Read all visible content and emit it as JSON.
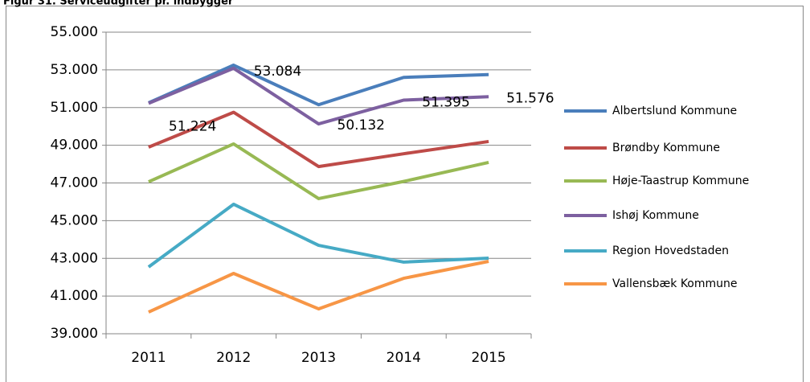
{
  "chart_data": {
    "type": "line",
    "title": "Figur 31. Serviceudgifter pr. indbygger",
    "categories": [
      "2011",
      "2012",
      "2013",
      "2014",
      "2015"
    ],
    "series": [
      {
        "name": "Albertslund Kommune",
        "color": "#4a7ebb",
        "values": [
          51250,
          53250,
          51150,
          52600,
          52750
        ]
      },
      {
        "name": "Brøndby Kommune",
        "color": "#be4b48",
        "values": [
          48900,
          50750,
          47870,
          48550,
          49200
        ]
      },
      {
        "name": "Høje-Taastrup Kommune",
        "color": "#98b954",
        "values": [
          47060,
          49070,
          46170,
          47080,
          48090
        ]
      },
      {
        "name": "Ishøj Kommune",
        "color": "#7d60a0",
        "values": [
          51224,
          53084,
          50132,
          51395,
          51576
        ],
        "value_labels": [
          "51.224",
          "53.084",
          "50.132",
          "51.395",
          "51.576"
        ]
      },
      {
        "name": "Region Hovedstaden",
        "color": "#46aac5",
        "values": [
          42540,
          45870,
          43690,
          42800,
          43010
        ]
      },
      {
        "name": "Vallensbæk Kommune",
        "color": "#f79646",
        "values": [
          40150,
          42200,
          40320,
          41940,
          42840
        ]
      }
    ],
    "ylim": [
      39000,
      55000
    ],
    "yticks": [
      {
        "value": 39000,
        "label": "39.000"
      },
      {
        "value": 41000,
        "label": "41.000"
      },
      {
        "value": 43000,
        "label": "43.000"
      },
      {
        "value": 45000,
        "label": "45.000"
      },
      {
        "value": 47000,
        "label": "47.000"
      },
      {
        "value": 49000,
        "label": "49.000"
      },
      {
        "value": 51000,
        "label": "51.000"
      },
      {
        "value": 53000,
        "label": "53.000"
      },
      {
        "value": 55000,
        "label": "55.000"
      }
    ],
    "grid": true,
    "legend": "right"
  }
}
